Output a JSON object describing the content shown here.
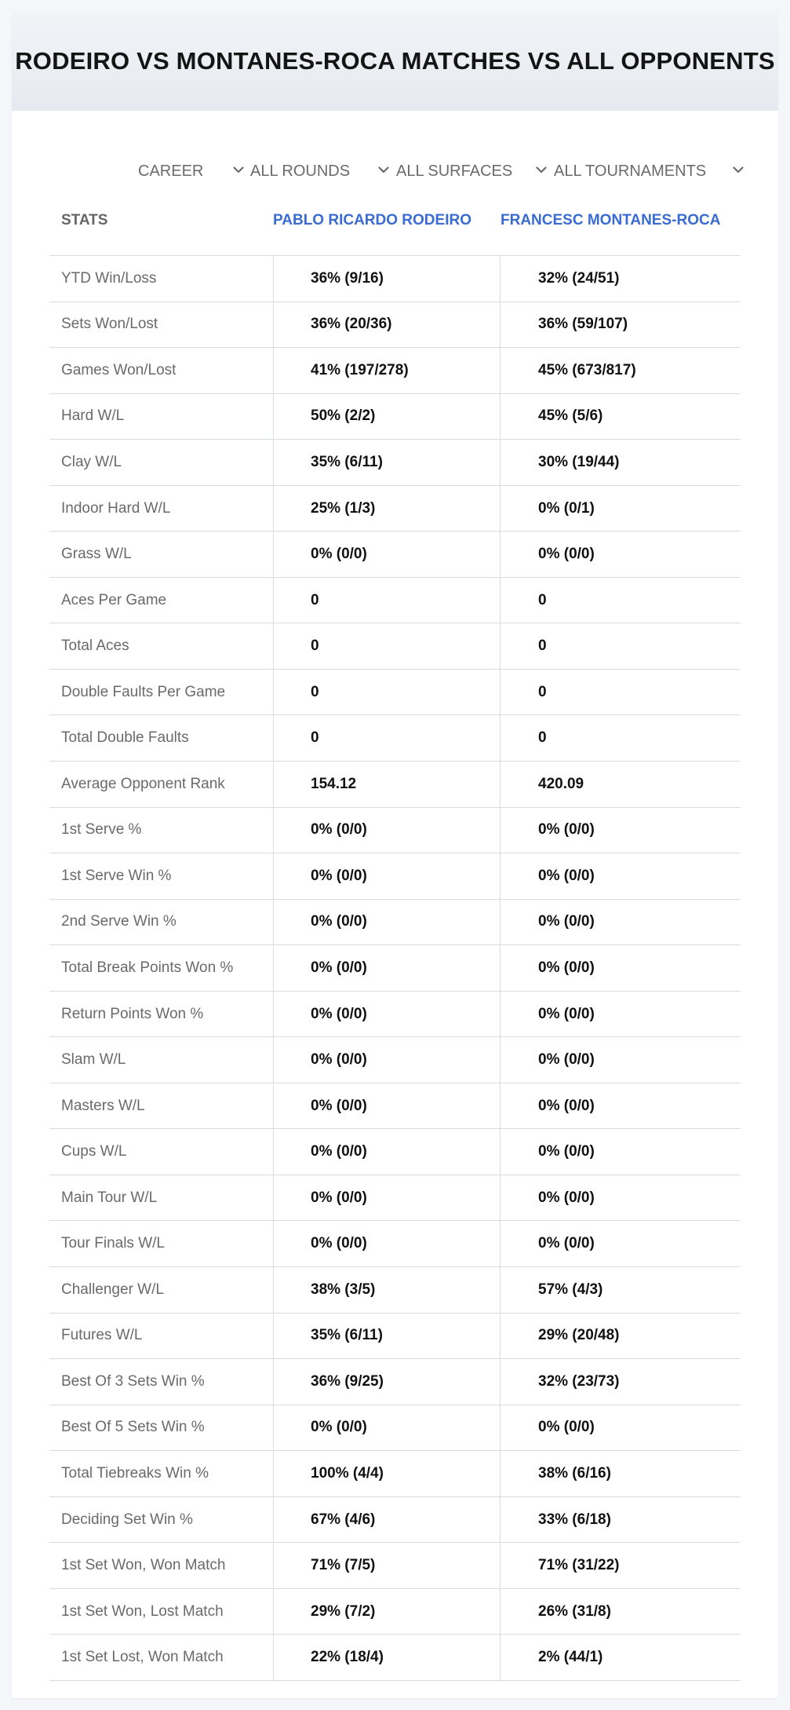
{
  "title": "RODEIRO VS MONTANES-ROCA MATCHES VS ALL OPPONENTS",
  "filters": {
    "period": "CAREER",
    "rounds": "ALL ROUNDS",
    "surfaces": "ALL SURFACES",
    "tournaments": "ALL TOURNAMENTS"
  },
  "table": {
    "header": {
      "stats": "STATS",
      "player1": "PABLO RICARDO RODEIRO",
      "player2": "FRANCESC MONTANES-ROCA"
    },
    "rows": [
      {
        "label": "YTD Win/Loss",
        "p1": "36% (9/16)",
        "p2": "32% (24/51)"
      },
      {
        "label": "Sets Won/Lost",
        "p1": "36% (20/36)",
        "p2": "36% (59/107)"
      },
      {
        "label": "Games Won/Lost",
        "p1": "41% (197/278)",
        "p2": "45% (673/817)"
      },
      {
        "label": "Hard W/L",
        "p1": "50% (2/2)",
        "p2": "45% (5/6)"
      },
      {
        "label": "Clay W/L",
        "p1": "35% (6/11)",
        "p2": "30% (19/44)"
      },
      {
        "label": "Indoor Hard W/L",
        "p1": "25% (1/3)",
        "p2": "0% (0/1)"
      },
      {
        "label": "Grass W/L",
        "p1": "0% (0/0)",
        "p2": "0% (0/0)"
      },
      {
        "label": "Aces Per Game",
        "p1": "0",
        "p2": "0"
      },
      {
        "label": "Total Aces",
        "p1": "0",
        "p2": "0"
      },
      {
        "label": "Double Faults Per Game",
        "p1": "0",
        "p2": "0"
      },
      {
        "label": "Total Double Faults",
        "p1": "0",
        "p2": "0"
      },
      {
        "label": "Average Opponent Rank",
        "p1": "154.12",
        "p2": "420.09"
      },
      {
        "label": "1st Serve %",
        "p1": "0% (0/0)",
        "p2": "0% (0/0)"
      },
      {
        "label": "1st Serve Win %",
        "p1": "0% (0/0)",
        "p2": "0% (0/0)"
      },
      {
        "label": "2nd Serve Win %",
        "p1": "0% (0/0)",
        "p2": "0% (0/0)"
      },
      {
        "label": "Total Break Points Won %",
        "p1": "0% (0/0)",
        "p2": "0% (0/0)"
      },
      {
        "label": "Return Points Won %",
        "p1": "0% (0/0)",
        "p2": "0% (0/0)"
      },
      {
        "label": "Slam W/L",
        "p1": "0% (0/0)",
        "p2": "0% (0/0)"
      },
      {
        "label": "Masters W/L",
        "p1": "0% (0/0)",
        "p2": "0% (0/0)"
      },
      {
        "label": "Cups W/L",
        "p1": "0% (0/0)",
        "p2": "0% (0/0)"
      },
      {
        "label": "Main Tour W/L",
        "p1": "0% (0/0)",
        "p2": "0% (0/0)"
      },
      {
        "label": "Tour Finals W/L",
        "p1": "0% (0/0)",
        "p2": "0% (0/0)"
      },
      {
        "label": "Challenger W/L",
        "p1": "38% (3/5)",
        "p2": "57% (4/3)"
      },
      {
        "label": "Futures W/L",
        "p1": "35% (6/11)",
        "p2": "29% (20/48)"
      },
      {
        "label": "Best Of 3 Sets Win %",
        "p1": "36% (9/25)",
        "p2": "32% (23/73)"
      },
      {
        "label": "Best Of 5 Sets Win %",
        "p1": "0% (0/0)",
        "p2": "0% (0/0)"
      },
      {
        "label": "Total Tiebreaks Win %",
        "p1": "100% (4/4)",
        "p2": "38% (6/16)"
      },
      {
        "label": "Deciding Set Win %",
        "p1": "67% (4/6)",
        "p2": "33% (6/18)"
      },
      {
        "label": "1st Set Won, Won Match",
        "p1": "71% (7/5)",
        "p2": "71% (31/22)"
      },
      {
        "label": "1st Set Won, Lost Match",
        "p1": "29% (7/2)",
        "p2": "26% (31/8)"
      },
      {
        "label": "1st Set Lost, Won Match",
        "p1": "22% (18/4)",
        "p2": "2% (44/1)"
      }
    ]
  },
  "colors": {
    "accent": "#3a6bd1",
    "header_bg": "#e9ecf1",
    "row_border": "#d8dbe0"
  },
  "icons": {
    "dropdown": "chevron-down-icon"
  }
}
